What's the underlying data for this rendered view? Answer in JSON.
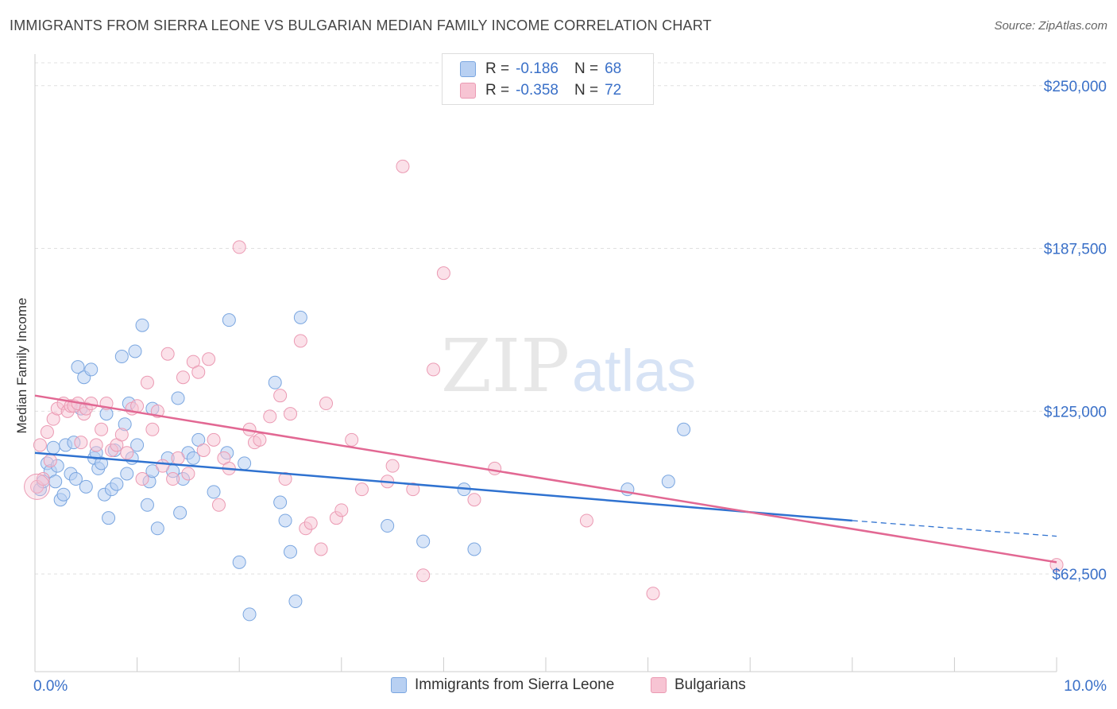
{
  "title": "IMMIGRANTS FROM SIERRA LEONE VS BULGARIAN MEDIAN FAMILY INCOME CORRELATION CHART",
  "source": "Source: ZipAtlas.com",
  "watermark": {
    "zip": "ZIP",
    "atlas": "atlas"
  },
  "colors": {
    "blue_fill": "#b8d0f2",
    "blue_stroke": "#7aa6e0",
    "blue_line": "#2f72d0",
    "pink_fill": "#f7c4d3",
    "pink_stroke": "#eb9ab3",
    "pink_line": "#e26893",
    "axis_label": "#3a70c8",
    "grid": "#e0e0e0"
  },
  "legend": {
    "rows": [
      {
        "r_label": "R =",
        "r_value": "-0.186",
        "n_label": "N =",
        "n_value": "68"
      },
      {
        "r_label": "R =",
        "r_value": "-0.358",
        "n_label": "N =",
        "n_value": "72"
      }
    ]
  },
  "chart_data": {
    "type": "scatter",
    "title": "IMMIGRANTS FROM SIERRA LEONE VS BULGARIAN MEDIAN FAMILY INCOME CORRELATION CHART",
    "xlabel": "",
    "ylabel": "Median Family Income",
    "xlim": [
      0,
      10
    ],
    "ylim": [
      25000,
      260000
    ],
    "x_tick_labels": [
      "0.0%",
      "10.0%"
    ],
    "y_ticks": [
      62500,
      125000,
      187500,
      250000
    ],
    "y_tick_labels": [
      "$62,500",
      "$125,000",
      "$187,500",
      "$250,000"
    ],
    "series": [
      {
        "name": "Immigrants from Sierra Leone",
        "color": "#7aa6e0",
        "trend": {
          "x0": 0.0,
          "y0": 109000,
          "x1": 8.0,
          "y1": 83000,
          "dashed_to": 10.0,
          "dashed_y": 77000
        },
        "points": [
          [
            0.05,
            95000
          ],
          [
            0.08,
            98000
          ],
          [
            0.12,
            105000
          ],
          [
            0.15,
            102000
          ],
          [
            0.18,
            111000
          ],
          [
            0.2,
            98000
          ],
          [
            0.22,
            104000
          ],
          [
            0.25,
            91000
          ],
          [
            0.28,
            93000
          ],
          [
            0.3,
            112000
          ],
          [
            0.35,
            101000
          ],
          [
            0.38,
            113000
          ],
          [
            0.4,
            99000
          ],
          [
            0.42,
            142000
          ],
          [
            0.45,
            126000
          ],
          [
            0.48,
            138000
          ],
          [
            0.5,
            96000
          ],
          [
            0.55,
            141000
          ],
          [
            0.58,
            107000
          ],
          [
            0.6,
            109000
          ],
          [
            0.62,
            103000
          ],
          [
            0.65,
            105000
          ],
          [
            0.68,
            93000
          ],
          [
            0.7,
            124000
          ],
          [
            0.72,
            84000
          ],
          [
            0.75,
            95000
          ],
          [
            0.78,
            110000
          ],
          [
            0.8,
            97000
          ],
          [
            0.85,
            146000
          ],
          [
            0.88,
            120000
          ],
          [
            0.9,
            101000
          ],
          [
            0.92,
            128000
          ],
          [
            0.95,
            107000
          ],
          [
            0.98,
            148000
          ],
          [
            1.0,
            112000
          ],
          [
            1.05,
            158000
          ],
          [
            1.1,
            89000
          ],
          [
            1.12,
            98000
          ],
          [
            1.15,
            102000
          ],
          [
            1.2,
            80000
          ],
          [
            1.3,
            107000
          ],
          [
            1.35,
            102000
          ],
          [
            1.4,
            130000
          ],
          [
            1.42,
            86000
          ],
          [
            1.45,
            99000
          ],
          [
            1.5,
            109000
          ],
          [
            1.55,
            107000
          ],
          [
            1.6,
            114000
          ],
          [
            1.75,
            94000
          ],
          [
            1.88,
            109000
          ],
          [
            1.9,
            160000
          ],
          [
            2.0,
            67000
          ],
          [
            2.05,
            105000
          ],
          [
            2.35,
            136000
          ],
          [
            2.4,
            90000
          ],
          [
            2.45,
            83000
          ],
          [
            2.5,
            71000
          ],
          [
            2.55,
            52000
          ],
          [
            2.6,
            161000
          ],
          [
            3.45,
            81000
          ],
          [
            3.8,
            75000
          ],
          [
            4.2,
            95000
          ],
          [
            4.3,
            72000
          ],
          [
            5.8,
            95000
          ],
          [
            6.2,
            98000
          ],
          [
            6.35,
            118000
          ],
          [
            1.15,
            126000
          ],
          [
            2.1,
            47000
          ]
        ]
      },
      {
        "name": "Bulgarians",
        "color": "#eb9ab3",
        "trend": {
          "x0": 0.0,
          "y0": 131000,
          "x1": 10.0,
          "y1": 67000
        },
        "points": [
          [
            0.02,
            96000
          ],
          [
            0.05,
            112000
          ],
          [
            0.08,
            99000
          ],
          [
            0.12,
            117000
          ],
          [
            0.15,
            106000
          ],
          [
            0.18,
            122000
          ],
          [
            0.22,
            126000
          ],
          [
            0.28,
            128000
          ],
          [
            0.32,
            125000
          ],
          [
            0.35,
            127000
          ],
          [
            0.38,
            127000
          ],
          [
            0.42,
            128000
          ],
          [
            0.45,
            113000
          ],
          [
            0.48,
            124000
          ],
          [
            0.5,
            126000
          ],
          [
            0.55,
            128000
          ],
          [
            0.6,
            112000
          ],
          [
            0.65,
            118000
          ],
          [
            0.7,
            128000
          ],
          [
            0.75,
            110000
          ],
          [
            0.8,
            112000
          ],
          [
            0.85,
            116000
          ],
          [
            0.9,
            109000
          ],
          [
            0.95,
            126000
          ],
          [
            1.0,
            127000
          ],
          [
            1.05,
            99000
          ],
          [
            1.1,
            136000
          ],
          [
            1.15,
            118000
          ],
          [
            1.2,
            125000
          ],
          [
            1.25,
            104000
          ],
          [
            1.3,
            147000
          ],
          [
            1.35,
            99000
          ],
          [
            1.4,
            107000
          ],
          [
            1.45,
            138000
          ],
          [
            1.5,
            101000
          ],
          [
            1.55,
            144000
          ],
          [
            1.6,
            140000
          ],
          [
            1.65,
            110000
          ],
          [
            1.7,
            145000
          ],
          [
            1.75,
            114000
          ],
          [
            1.8,
            89000
          ],
          [
            1.85,
            107000
          ],
          [
            1.9,
            103000
          ],
          [
            2.0,
            188000
          ],
          [
            2.1,
            118000
          ],
          [
            2.15,
            113000
          ],
          [
            2.2,
            114000
          ],
          [
            2.3,
            123000
          ],
          [
            2.4,
            131000
          ],
          [
            2.45,
            99000
          ],
          [
            2.5,
            124000
          ],
          [
            2.6,
            152000
          ],
          [
            2.65,
            80000
          ],
          [
            2.7,
            82000
          ],
          [
            2.8,
            72000
          ],
          [
            2.85,
            128000
          ],
          [
            2.95,
            84000
          ],
          [
            3.0,
            87000
          ],
          [
            3.1,
            114000
          ],
          [
            3.2,
            95000
          ],
          [
            3.45,
            98000
          ],
          [
            3.5,
            104000
          ],
          [
            3.6,
            219000
          ],
          [
            3.7,
            95000
          ],
          [
            3.8,
            62000
          ],
          [
            3.9,
            141000
          ],
          [
            4.0,
            178000
          ],
          [
            4.3,
            91000
          ],
          [
            4.5,
            103000
          ],
          [
            5.4,
            83000
          ],
          [
            6.05,
            55000
          ],
          [
            10.0,
            66000
          ]
        ]
      }
    ]
  }
}
